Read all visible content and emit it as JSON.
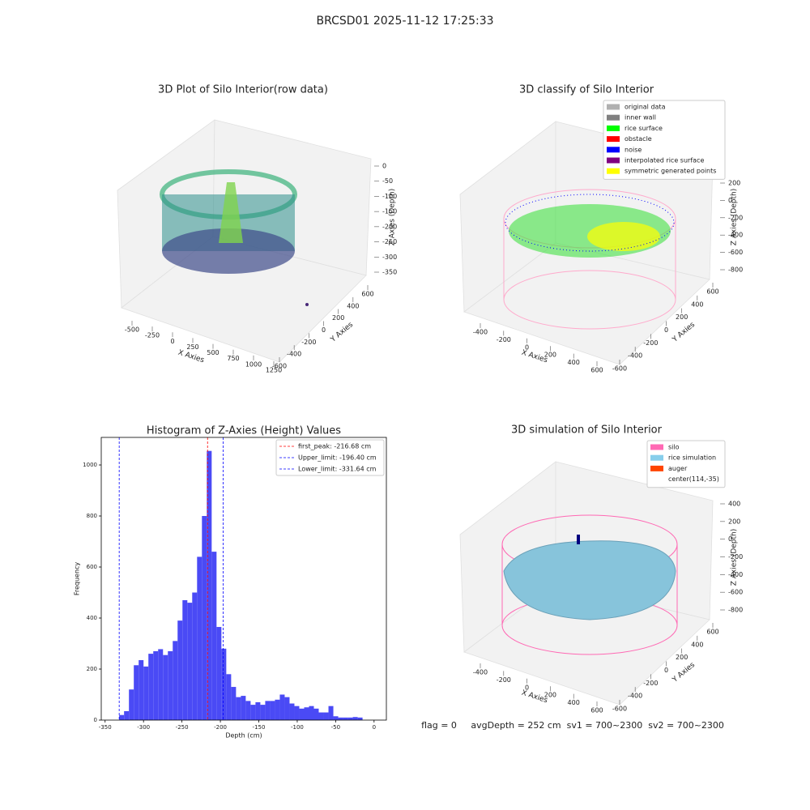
{
  "title": "BRCSD01 2025-11-12 17:25:33",
  "footer": "flag = 0     avgDepth = 252 cm  sv1 = 700~2300  sv2 = 700~2300",
  "chart_data": [
    {
      "type": "scatter3d",
      "title": "3D Plot of Silo Interior(row data)",
      "xlabel": "X Axies",
      "ylabel": "Y Axies",
      "zlabel": "Z Axies (Depth)",
      "xticks": [
        -500,
        -250,
        0,
        250,
        500,
        750,
        1000,
        1250
      ],
      "yticks": [
        -600,
        -400,
        -200,
        0,
        200,
        400,
        600
      ],
      "zticks": [
        0,
        -50,
        -100,
        -150,
        -200,
        -250,
        -300,
        -350
      ]
    },
    {
      "type": "scatter3d",
      "title": "3D classify of Silo Interior",
      "xlabel": "X Axies",
      "ylabel": "Y Axies",
      "zlabel": "Z Axies (Depth)",
      "xticks": [
        -400,
        -200,
        0,
        200,
        400,
        600
      ],
      "yticks": [
        -600,
        -400,
        -200,
        0,
        200,
        400,
        600
      ],
      "zticks": [
        200,
        0,
        -200,
        -400,
        -600,
        -800
      ],
      "series": [
        {
          "name": "original data",
          "color": "#b0b0b0"
        },
        {
          "name": "inner wall",
          "color": "#808080"
        },
        {
          "name": "rice surface",
          "color": "#00ff00"
        },
        {
          "name": "obstacle",
          "color": "#ff0000"
        },
        {
          "name": "noise",
          "color": "#0000ff"
        },
        {
          "name": "interpolated rice surface",
          "color": "#800080"
        },
        {
          "name": "symmetric generated points",
          "color": "#ffff00"
        }
      ]
    },
    {
      "type": "histogram",
      "title": "Histogram of Z-Axies (Height) Values",
      "xlabel": "Depth (cm)",
      "ylabel": "Frequency",
      "color": "#4a4af5",
      "bins": [
        -331.64,
        -325.31,
        -318.97,
        -312.64,
        -306.31,
        -299.98,
        -293.64,
        -287.31,
        -280.98,
        -274.64,
        -268.31,
        -261.98,
        -255.65,
        -249.31,
        -242.98,
        -236.65,
        -230.32,
        -223.98,
        -217.65,
        -211.32,
        -204.98,
        -198.65,
        -192.32,
        -185.99,
        -179.65,
        -173.32,
        -166.99,
        -160.66,
        -154.32,
        -147.99,
        -141.66,
        -135.32,
        -128.99,
        -122.66,
        -116.33,
        -109.99,
        -103.66,
        -97.33,
        -90.99,
        -84.66,
        -78.33,
        -72.0,
        -65.66,
        -59.33,
        -53.0,
        -46.66,
        -40.33,
        -34.0,
        -27.67,
        -21.33,
        -15.0
      ],
      "counts": [
        20,
        35,
        120,
        215,
        235,
        210,
        260,
        270,
        278,
        255,
        270,
        310,
        390,
        470,
        460,
        500,
        640,
        800,
        1055,
        660,
        365,
        280,
        180,
        130,
        90,
        95,
        75,
        60,
        70,
        60,
        75,
        75,
        80,
        100,
        90,
        65,
        55,
        45,
        50,
        55,
        45,
        30,
        30,
        55,
        15,
        10,
        10,
        10,
        12,
        10
      ],
      "xlim": [
        -355,
        16
      ],
      "ylim": [
        0,
        1108
      ],
      "xticks": [
        -350,
        -300,
        -250,
        -200,
        -150,
        -100,
        -50,
        0
      ],
      "yticks": [
        0,
        200,
        400,
        600,
        800,
        1000
      ],
      "vlines": [
        {
          "label": "first_peak: -216.68 cm",
          "value": -216.68,
          "color": "#ff0000"
        },
        {
          "label": "Upper_limit: -196.40 cm",
          "value": -196.4,
          "color": "#0000ff"
        },
        {
          "label": "Lower_limit: -331.64 cm",
          "value": -331.64,
          "color": "#0000ff"
        }
      ]
    },
    {
      "type": "scatter3d",
      "title": "3D simulation of Silo Interior",
      "xlabel": "X Axies",
      "ylabel": "Y Axies",
      "zlabel": "Z Axies (Depth)",
      "xticks": [
        -400,
        -200,
        0,
        200,
        400,
        600
      ],
      "yticks": [
        -600,
        -400,
        -200,
        0,
        200,
        400,
        600
      ],
      "zticks": [
        400,
        200,
        0,
        -200,
        -400,
        -600,
        -800
      ],
      "series": [
        {
          "name": "silo",
          "color": "#ff69b4"
        },
        {
          "name": "rice simulation",
          "color": "#87ceeb"
        },
        {
          "name": "auger",
          "color": "#ff4500"
        },
        {
          "name": "center(114,-35)",
          "color": null
        }
      ]
    }
  ]
}
